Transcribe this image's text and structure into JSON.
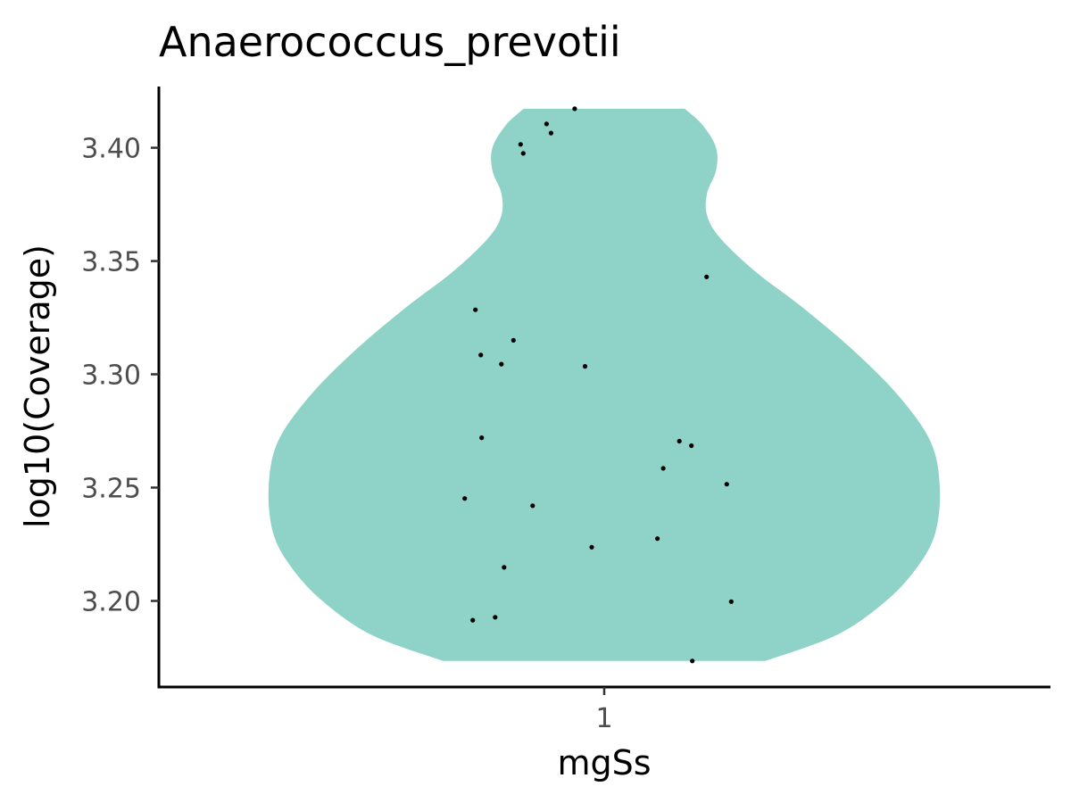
{
  "chart_data": {
    "type": "violin",
    "title": "Anaerococcus_prevotii",
    "xlabel": "mgSs",
    "ylabel": "log10(Coverage)",
    "categories": [
      "1"
    ],
    "ylim": [
      3.162,
      3.427
    ],
    "yticks": [
      3.2,
      3.25,
      3.3,
      3.35,
      3.4
    ],
    "ytick_labels": [
      "3.20",
      "3.25",
      "3.30",
      "3.35",
      "3.40"
    ],
    "xticks": [
      "1"
    ],
    "grid": false,
    "legend": "none",
    "fill_color": "#8fd3c8",
    "point_color": "#000000",
    "violin_range": [
      3.1735,
      3.4172
    ],
    "density_profile": [
      {
        "y": 3.1735,
        "w": 0.36
      },
      {
        "y": 3.185,
        "w": 0.52
      },
      {
        "y": 3.2,
        "w": 0.63
      },
      {
        "y": 3.215,
        "w": 0.7
      },
      {
        "y": 3.23,
        "w": 0.74
      },
      {
        "y": 3.25,
        "w": 0.75
      },
      {
        "y": 3.27,
        "w": 0.73
      },
      {
        "y": 3.29,
        "w": 0.66
      },
      {
        "y": 3.31,
        "w": 0.56
      },
      {
        "y": 3.33,
        "w": 0.44
      },
      {
        "y": 3.345,
        "w": 0.34
      },
      {
        "y": 3.36,
        "w": 0.26
      },
      {
        "y": 3.37,
        "w": 0.23
      },
      {
        "y": 3.38,
        "w": 0.23
      },
      {
        "y": 3.39,
        "w": 0.25
      },
      {
        "y": 3.4,
        "w": 0.25
      },
      {
        "y": 3.41,
        "w": 0.22
      },
      {
        "y": 3.4172,
        "w": 0.18
      }
    ],
    "points": [
      {
        "x": 0.934,
        "y": 3.4172
      },
      {
        "x": 0.871,
        "y": 3.4105
      },
      {
        "x": 0.881,
        "y": 3.4065
      },
      {
        "x": 0.813,
        "y": 3.4015
      },
      {
        "x": 0.819,
        "y": 3.3975
      },
      {
        "x": 1.229,
        "y": 3.343
      },
      {
        "x": 0.712,
        "y": 3.3285
      },
      {
        "x": 0.797,
        "y": 3.315
      },
      {
        "x": 0.724,
        "y": 3.3085
      },
      {
        "x": 0.77,
        "y": 3.3045
      },
      {
        "x": 0.957,
        "y": 3.3035
      },
      {
        "x": 0.726,
        "y": 3.272
      },
      {
        "x": 1.168,
        "y": 3.2705
      },
      {
        "x": 1.195,
        "y": 3.2685
      },
      {
        "x": 1.132,
        "y": 3.2585
      },
      {
        "x": 1.274,
        "y": 3.2515
      },
      {
        "x": 0.688,
        "y": 3.2452
      },
      {
        "x": 0.84,
        "y": 3.242
      },
      {
        "x": 0.972,
        "y": 3.2237
      },
      {
        "x": 1.119,
        "y": 3.2275
      },
      {
        "x": 0.776,
        "y": 3.2148
      },
      {
        "x": 1.284,
        "y": 3.1997
      },
      {
        "x": 0.706,
        "y": 3.1915
      },
      {
        "x": 0.756,
        "y": 3.1928
      },
      {
        "x": 1.197,
        "y": 3.1735
      }
    ]
  }
}
